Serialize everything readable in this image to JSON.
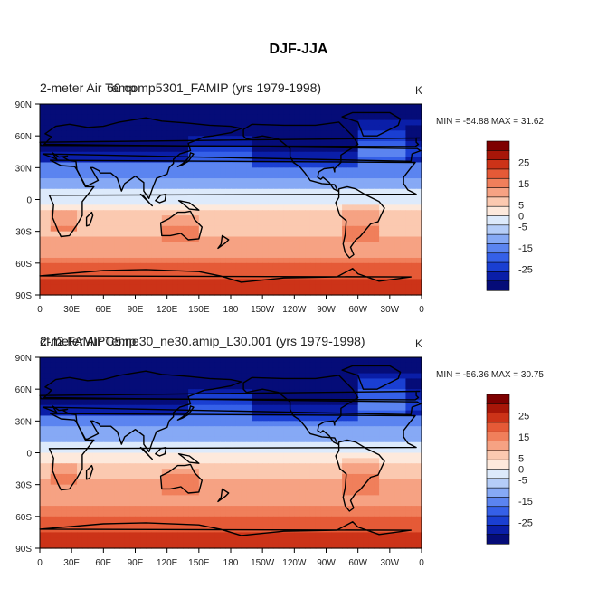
{
  "figure": {
    "title": "DJF-JJA"
  },
  "panels": [
    {
      "left_title": "2-meter Air Temp",
      "overlay_title": "60 comp5301_FAMIP (yrs 1979-1998)",
      "units": "K",
      "minmax": "MIN = -54.88 MAX =  31.62"
    },
    {
      "left_title": "2-meter Air Temp",
      "overlay_title": "cf.f2.FAMIPC5.ne30_ne30.amip_L30.001 (yrs 1979-1998)",
      "units": "K",
      "minmax": "MIN = -56.36 MAX =  30.75"
    }
  ],
  "colors": {
    "levels": [
      "#050c78",
      "#0a1ea8",
      "#1a3fd2",
      "#3560e8",
      "#5b84f0",
      "#86a9f5",
      "#b5cdf8",
      "#ddeafb",
      "#fde9dc",
      "#fbc9b0",
      "#f6a283",
      "#f07f5b",
      "#e55a37",
      "#cc3318",
      "#a71608",
      "#7e0000"
    ],
    "coast": "#000000"
  },
  "chart_data": {
    "type": "heatmap",
    "title": "DJF-JJA",
    "variable": "2-meter Air Temp",
    "units": "K",
    "x_ticks": [
      "0",
      "30E",
      "60E",
      "90E",
      "120E",
      "150E",
      "180",
      "150W",
      "120W",
      "90W",
      "60W",
      "30W",
      "0"
    ],
    "y_ticks": [
      "90N",
      "60N",
      "30N",
      "0",
      "30S",
      "60S",
      "90S"
    ],
    "xlim": [
      0,
      360
    ],
    "ylim": [
      -90,
      90
    ],
    "colorbar": {
      "boundaries": [
        -35,
        -30,
        -25,
        -20,
        -15,
        -10,
        -5,
        0,
        5,
        10,
        15,
        20,
        25,
        30,
        35
      ],
      "tick_labels": [
        "25",
        "15",
        "5",
        "0",
        "-5",
        "-15",
        "-25"
      ],
      "tick_values": [
        25,
        15,
        5,
        0,
        -5,
        -15,
        -25
      ]
    },
    "series": [
      {
        "name": "60 comp5301_FAMIP (yrs 1979-1998)",
        "min": -54.88,
        "max": 31.62
      },
      {
        "name": "cf.f2.FAMIPC5.ne30_ne30.amip_L30.001 (yrs 1979-1998)",
        "min": -56.36,
        "max": 30.75
      }
    ]
  }
}
